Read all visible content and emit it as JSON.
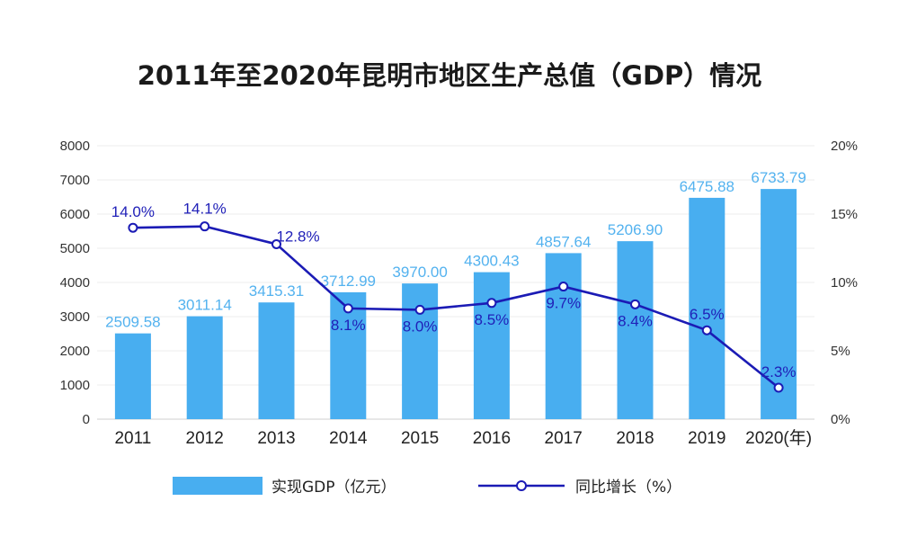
{
  "chart_data": {
    "type": "bar+line",
    "title": "2011年至2020年昆明市地区生产总值（GDP）情况",
    "categories": [
      "2011",
      "2012",
      "2013",
      "2014",
      "2015",
      "2016",
      "2017",
      "2018",
      "2019",
      "2020"
    ],
    "category_labels": [
      "2011",
      "2012",
      "2013",
      "2014",
      "2015",
      "2016",
      "2017",
      "2018",
      "2019",
      "2020(年)"
    ],
    "series": [
      {
        "name": "实现GDP（亿元）",
        "type": "bar",
        "axis": "left",
        "values": [
          2509.58,
          3011.14,
          3415.31,
          3712.99,
          3970.0,
          4300.43,
          4857.64,
          5206.9,
          6475.88,
          6733.79
        ],
        "labels": [
          "2509.58",
          "3011.14",
          "3415.31",
          "3712.99",
          "3970.00",
          "4300.43",
          "4857.64",
          "5206.90",
          "6475.88",
          "6733.79"
        ],
        "color": "#48aef0"
      },
      {
        "name": "同比增长（%）",
        "type": "line",
        "axis": "right",
        "values": [
          14.0,
          14.1,
          12.8,
          8.1,
          8.0,
          8.5,
          9.7,
          8.4,
          6.5,
          2.3
        ],
        "labels": [
          "14.0%",
          "14.1%",
          "12.8%",
          "8.1%",
          "8.0%",
          "8.5%",
          "9.7%",
          "8.4%",
          "6.5%",
          "2.3%"
        ],
        "color": "#1b1bb5"
      }
    ],
    "y_left": {
      "min": 0,
      "max": 8000,
      "ticks": [
        "0",
        "1000",
        "2000",
        "3000",
        "4000",
        "5000",
        "6000",
        "7000",
        "8000"
      ]
    },
    "y_right": {
      "min": 0,
      "max": 20,
      "ticks": [
        "0%",
        "5%",
        "10%",
        "15%",
        "20%"
      ]
    },
    "grid": true,
    "legend_position": "bottom"
  }
}
